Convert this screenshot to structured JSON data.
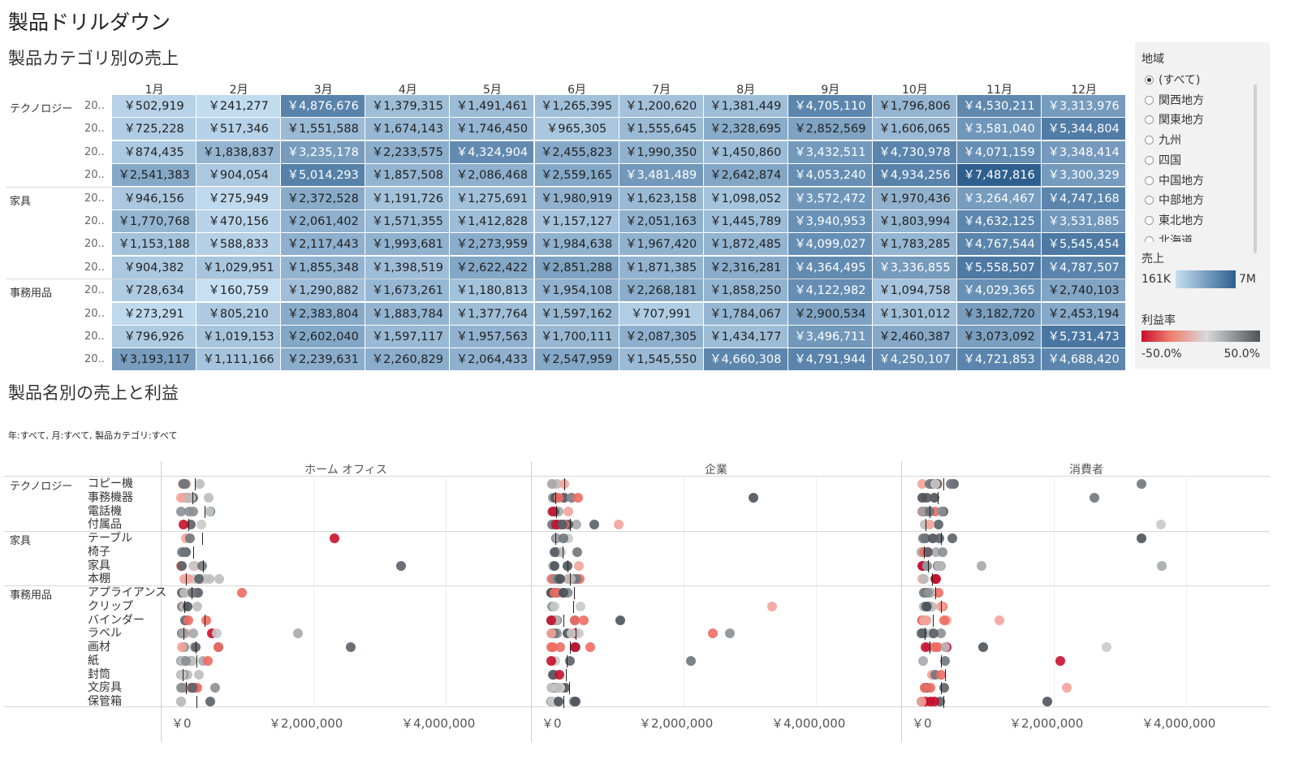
{
  "page_title": "製品ドリルダウン",
  "heatmap": {
    "title": "製品カテゴリ別の売上",
    "months": [
      "1月",
      "2月",
      "3月",
      "4月",
      "5月",
      "6月",
      "7月",
      "8月",
      "9月",
      "10月",
      "11月",
      "12月"
    ],
    "year_label": "20..",
    "categories": [
      "テクノロジー",
      "家具",
      "事務用品"
    ],
    "rows": [
      {
        "cat": "テクノロジー",
        "values": [
          502919,
          241277,
          4876676,
          1379315,
          1491461,
          1265395,
          1200620,
          1381449,
          4705110,
          1796806,
          4530211,
          3313976
        ]
      },
      {
        "cat": "テクノロジー",
        "values": [
          725228,
          517346,
          1551588,
          1674143,
          1746450,
          965305,
          1555645,
          2328695,
          2852569,
          1606065,
          3581040,
          5344804
        ]
      },
      {
        "cat": "テクノロジー",
        "values": [
          874435,
          1838837,
          3235178,
          2233575,
          4324904,
          2455823,
          1990350,
          1450860,
          3432511,
          4730978,
          4071159,
          3348414
        ]
      },
      {
        "cat": "テクノロジー",
        "values": [
          2541383,
          904054,
          5014293,
          1857508,
          2086468,
          2559165,
          3481489,
          2642874,
          4053240,
          4934256,
          7487816,
          3300329
        ]
      },
      {
        "cat": "家具",
        "values": [
          946156,
          275949,
          2372528,
          1191726,
          1275691,
          1980919,
          1623158,
          1098052,
          3572472,
          1970436,
          3264467,
          4747168
        ]
      },
      {
        "cat": "家具",
        "values": [
          1770768,
          470156,
          2061402,
          1571355,
          1412828,
          1157127,
          2051163,
          1445789,
          3940953,
          1803994,
          4632125,
          3531885
        ]
      },
      {
        "cat": "家具",
        "values": [
          1153188,
          588833,
          2117443,
          1993681,
          2273959,
          1984638,
          1967420,
          1872485,
          4099027,
          1783285,
          4767544,
          5545454
        ]
      },
      {
        "cat": "家具",
        "values": [
          904382,
          1029951,
          1855348,
          1398519,
          2622422,
          2851288,
          1871385,
          2316281,
          4364495,
          3336855,
          5558507,
          4787507
        ]
      },
      {
        "cat": "事務用品",
        "values": [
          728634,
          160759,
          1290882,
          1673261,
          1180813,
          1954108,
          2268181,
          1858250,
          4122982,
          1094758,
          4029365,
          2740103
        ]
      },
      {
        "cat": "事務用品",
        "values": [
          273291,
          805210,
          2383804,
          1883784,
          1377764,
          1597162,
          707991,
          1784067,
          2900534,
          1301012,
          3182720,
          2453194
        ]
      },
      {
        "cat": "事務用品",
        "values": [
          796926,
          1019153,
          2602040,
          1597117,
          1957563,
          1700111,
          2087305,
          1434177,
          3496711,
          2460387,
          3073092,
          5731473
        ]
      },
      {
        "cat": "事務用品",
        "values": [
          3193117,
          1111166,
          2239631,
          2260829,
          2064433,
          2547959,
          1545550,
          4660308,
          4791944,
          4250107,
          4721853,
          4688420
        ]
      }
    ],
    "color_min": 160759,
    "color_max": 7487816
  },
  "region_filter": {
    "title": "地域",
    "options": [
      "(すべて)",
      "関西地方",
      "関東地方",
      "九州",
      "四国",
      "中国地方",
      "中部地方",
      "東北地方",
      "北海道"
    ],
    "selected": 0
  },
  "sales_legend": {
    "title": "売上",
    "min_label": "161K",
    "max_label": "7M",
    "color_low": "#c6dff2",
    "color_high": "#2e5f8f"
  },
  "profit_legend": {
    "title": "利益率",
    "min_label": "-50.0%",
    "max_label": "50.0%",
    "color_neg": "#c8102e",
    "color_mid": "#d9d9d9",
    "color_pos": "#4d5359"
  },
  "scatter": {
    "title": "製品名別の売上と利益",
    "filter_text": "年:すべて, 月:すべて, 製品カテゴリ:すべて",
    "segments": [
      "ホーム オフィス",
      "企業",
      "消費者"
    ],
    "x_ticks": [
      "￥0",
      "￥2,000,000",
      "￥4,000,000"
    ],
    "groups": [
      {
        "category": "テクノロジー",
        "products": [
          "コピー機",
          "事務機器",
          "電話機",
          "付属品"
        ]
      },
      {
        "category": "家具",
        "products": [
          "テーブル",
          "椅子",
          "家具",
          "本棚"
        ]
      },
      {
        "category": "事務用品",
        "products": [
          "アプライアンス",
          "クリップ",
          "バインダー",
          "ラベル",
          "画材",
          "紙",
          "封筒",
          "文房具",
          "保管箱"
        ]
      }
    ]
  }
}
